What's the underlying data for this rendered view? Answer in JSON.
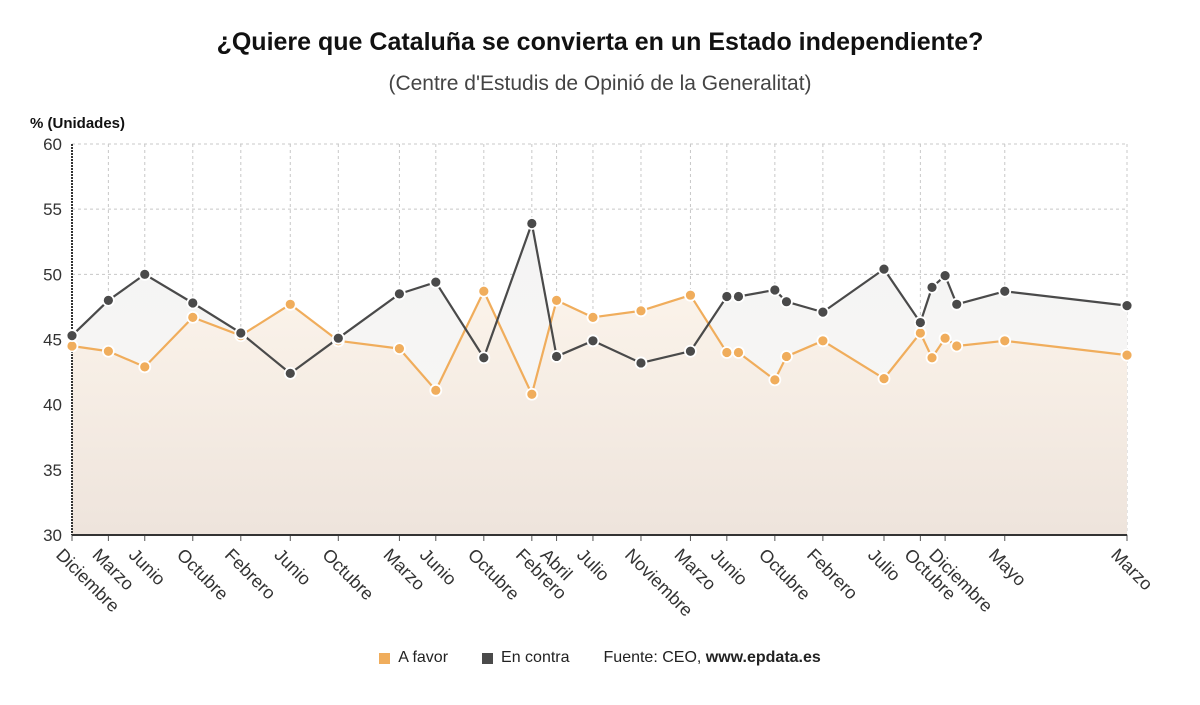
{
  "chart_data": {
    "type": "line",
    "title": "¿Quiere que Cataluña se convierta en un Estado independiente?",
    "subtitle": "(Centre d'Estudis de Opinió de la Generalitat)",
    "ylabel": "% (Unidades)",
    "ylim": [
      30,
      60
    ],
    "yticks": [
      30,
      35,
      40,
      45,
      50,
      55,
      60
    ],
    "grid": true,
    "legend_position": "bottom",
    "x": [
      2014.92,
      2015.17,
      2015.42,
      2015.75,
      2016.08,
      2016.42,
      2016.75,
      2017.17,
      2017.42,
      2017.75,
      2018.08,
      2018.25,
      2018.5,
      2018.83,
      2019.17,
      2019.42,
      2019.5,
      2019.75,
      2019.83,
      2020.08,
      2020.5,
      2020.75,
      2020.83,
      2020.92,
      2021.0,
      2021.33,
      2022.17
    ],
    "x_tick_positions": [
      2014.92,
      2015.17,
      2015.42,
      2015.75,
      2016.08,
      2016.42,
      2016.75,
      2017.17,
      2017.42,
      2017.75,
      2018.08,
      2018.25,
      2018.5,
      2018.83,
      2019.17,
      2019.42,
      2019.75,
      2020.08,
      2020.5,
      2020.75,
      2020.92,
      2021.33,
      2022.17
    ],
    "x_tick_labels": [
      "Diciembre",
      "Marzo",
      "Junio",
      "Octubre",
      "Febrero",
      "Junio",
      "Octubre",
      "Marzo",
      "Junio",
      "Octubre",
      "Febrero",
      "Abril",
      "Julio",
      "Noviembre",
      "Marzo",
      "Junio",
      "Octubre",
      "Febrero",
      "Julio",
      "Octubre",
      "Diciembre",
      "Mayo",
      "Marzo"
    ],
    "series": [
      {
        "name": "A favor",
        "color": "#f0ad5c",
        "values": [
          44.5,
          44.1,
          42.9,
          46.7,
          45.3,
          47.7,
          44.9,
          44.3,
          41.1,
          48.7,
          40.8,
          48.0,
          46.7,
          47.2,
          48.4,
          44.0,
          44.0,
          41.9,
          43.7,
          44.9,
          42.0,
          45.5,
          43.6,
          45.1,
          44.5,
          44.9,
          43.8
        ]
      },
      {
        "name": "En contra",
        "color": "#4a4a4a",
        "values": [
          45.3,
          48.0,
          50.0,
          47.8,
          45.5,
          42.4,
          45.1,
          48.5,
          49.4,
          43.6,
          53.9,
          43.7,
          44.9,
          43.2,
          44.1,
          48.3,
          48.3,
          48.8,
          47.9,
          47.1,
          50.4,
          46.3,
          49.0,
          49.9,
          47.7,
          48.7,
          47.6
        ]
      }
    ]
  },
  "legend": {
    "items": [
      {
        "label": "A favor",
        "color": "#f0ad5c"
      },
      {
        "label": "En contra",
        "color": "#4a4a4a"
      }
    ],
    "source_prefix": "Fuente: CEO, ",
    "source_site": "www.epdata.es"
  }
}
